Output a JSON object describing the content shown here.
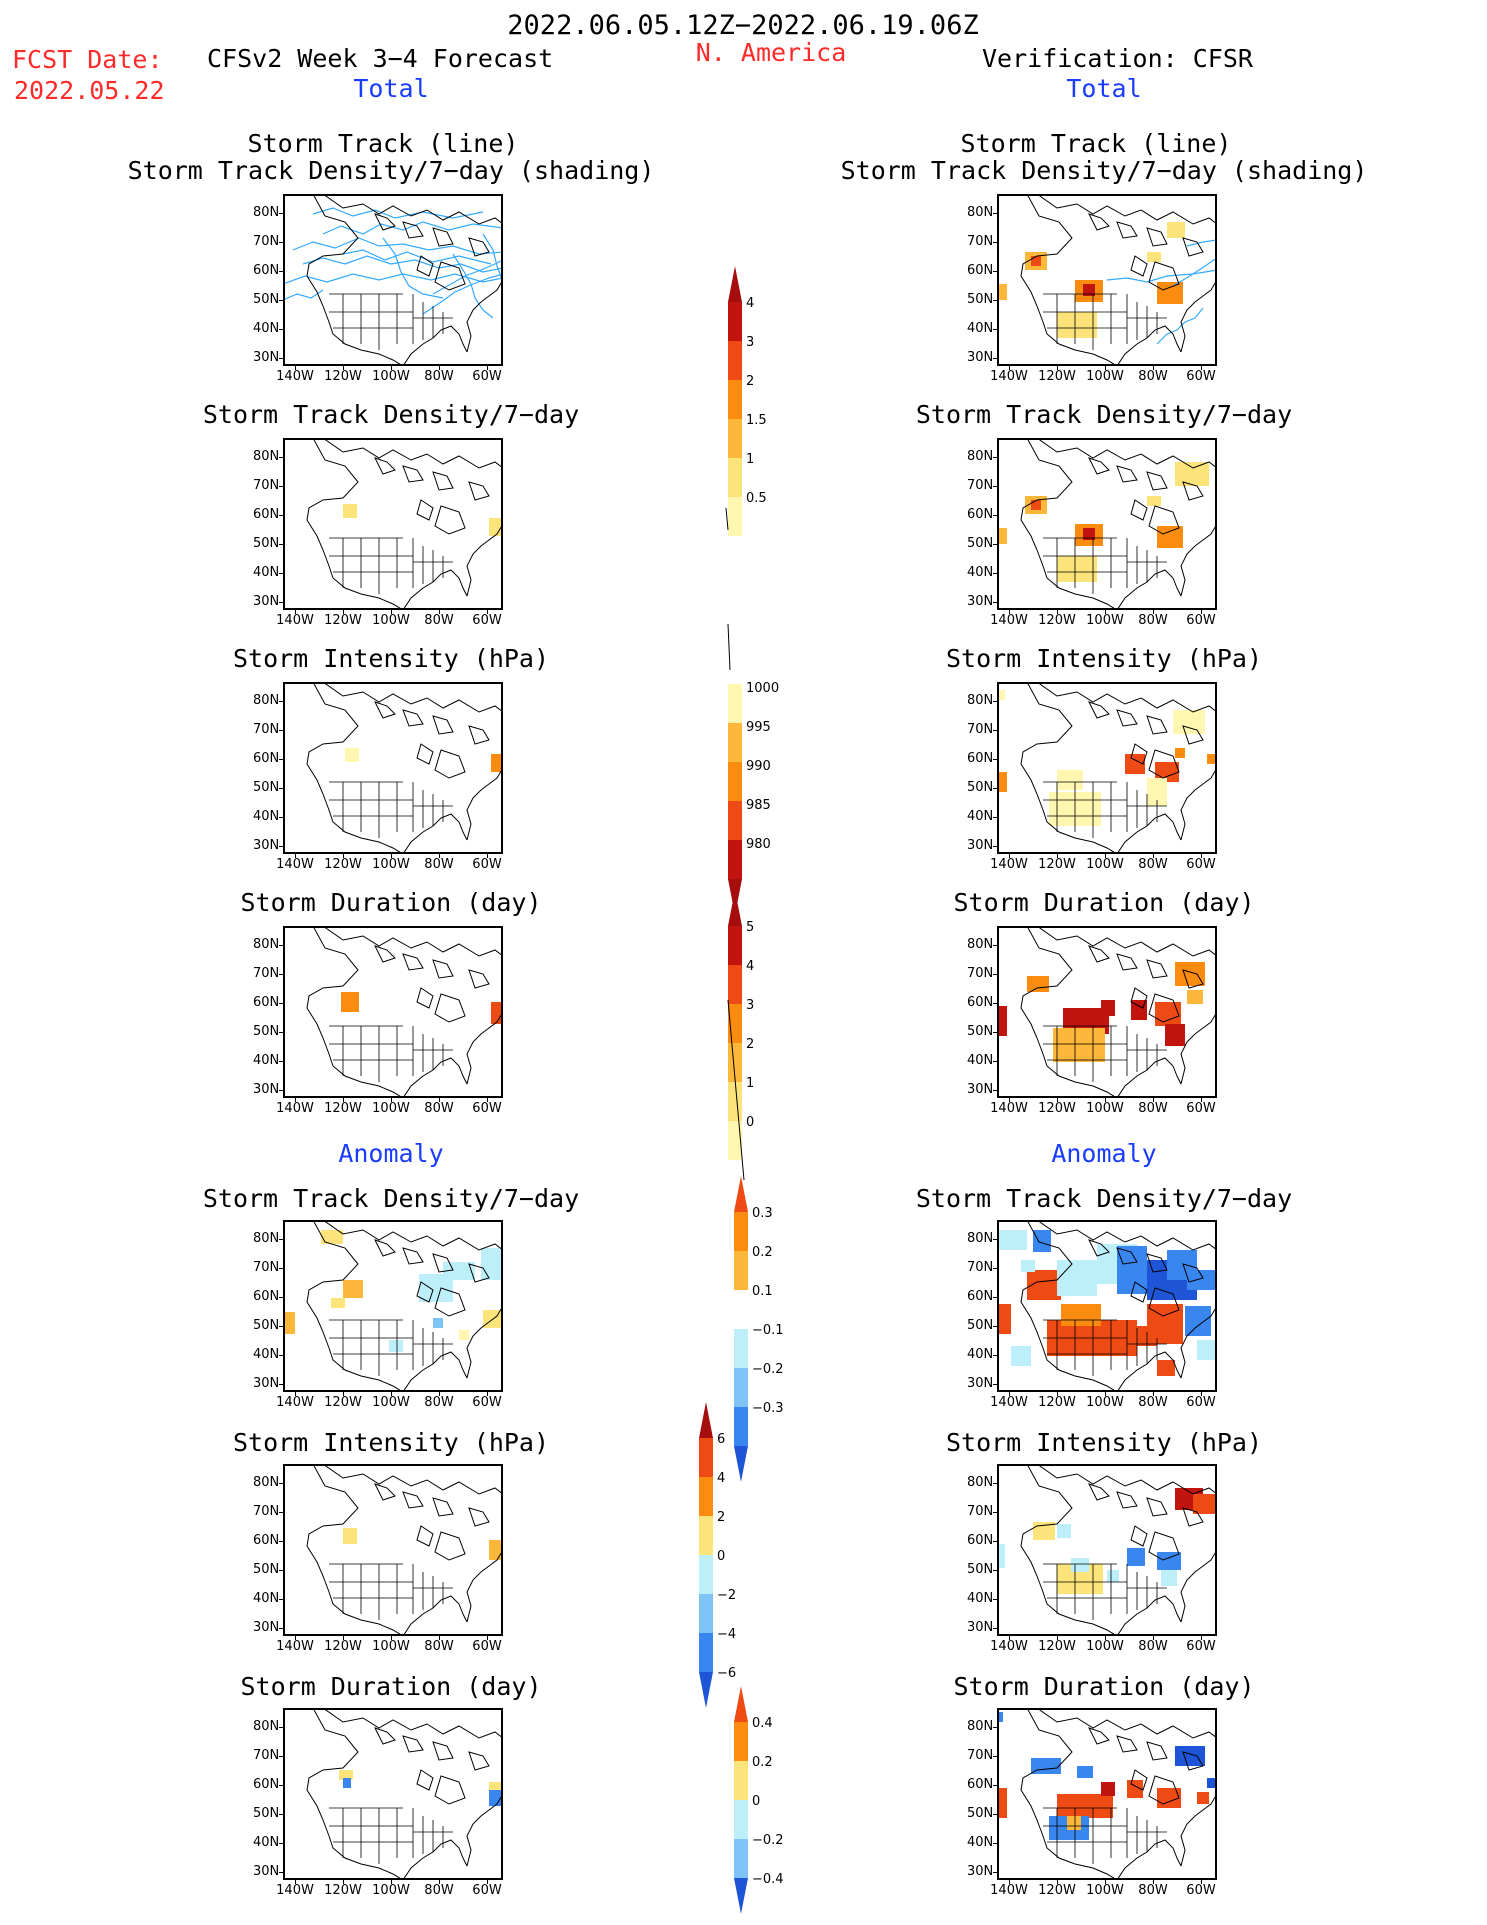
{
  "header": {
    "date_range": "2022.06.05.12Z−2022.06.19.06Z",
    "fcst_label": "FCST Date:",
    "fcst_date": "2022.05.22",
    "model_title": "CFSv2 Week 3−4 Forecast",
    "region": "N. America",
    "verification": "Verification: CFSR"
  },
  "sections": {
    "total_left": "Total",
    "total_right": "Total",
    "anomaly_left": "Anomaly",
    "anomaly_right": "Anomaly"
  },
  "panel_titles": {
    "storm_track_line": "Storm Track (line)",
    "storm_track_density_shading": "Storm Track Density/7−day (shading)",
    "storm_track_density": "Storm Track Density/7−day",
    "storm_intensity": "Storm Intensity (hPa)",
    "storm_duration": "Storm Duration (day)"
  },
  "axes": {
    "lat_labels": [
      "80N",
      "70N",
      "60N",
      "50N",
      "40N",
      "30N"
    ],
    "lon_labels": [
      "140W",
      "120W",
      "100W",
      "80W",
      "60W"
    ]
  },
  "colorbars": {
    "density_total": [
      "4",
      "3",
      "2",
      "1.5",
      "1",
      "0.5"
    ],
    "intensity_total": [
      "1000",
      "995",
      "990",
      "985",
      "980"
    ],
    "duration_total": [
      "5",
      "4",
      "3",
      "2",
      "1",
      "0"
    ],
    "density_anom": [
      "0.3",
      "0.2",
      "0.1",
      "−0.1",
      "−0.2",
      "−0.3"
    ],
    "intensity_anom": [
      "6",
      "4",
      "2",
      "0",
      "−2",
      "−4",
      "−6"
    ],
    "duration_anom": [
      "0.4",
      "0.2",
      "0",
      "−0.2",
      "−0.4"
    ]
  },
  "colors": {
    "title_red": "#ff2a2a",
    "title_blue": "#1a3cff",
    "track_line": "#33aaff",
    "warm_1": "#fff7b0",
    "warm_2": "#fde47a",
    "warm_3": "#fdb73a",
    "warm_4": "#fb8c10",
    "warm_5": "#ee4a14",
    "warm_6": "#c2140e",
    "cool_1": "#bdeffa",
    "cool_2": "#7fc4f6",
    "cool_3": "#3a86ef",
    "cool_4": "#1d55d6"
  }
}
